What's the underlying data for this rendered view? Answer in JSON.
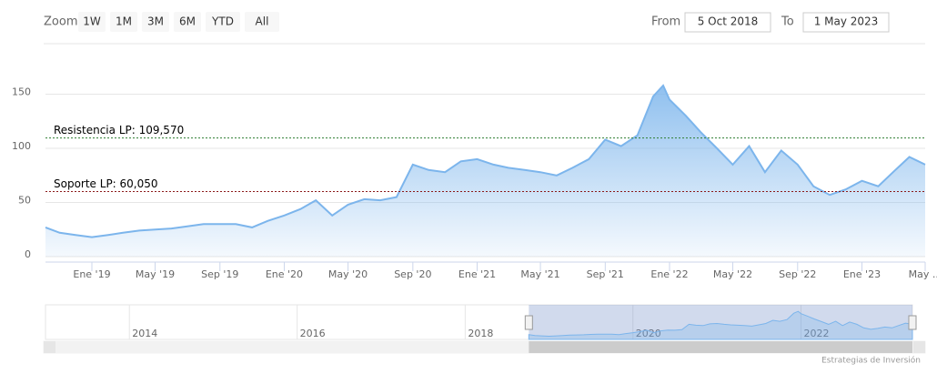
{
  "ui": {
    "zoom_label": "Zoom",
    "zoom_buttons": [
      "1W",
      "1M",
      "3M",
      "6M",
      "YTD",
      "All"
    ],
    "from_label": "From",
    "from_value": "5 Oct 2018",
    "to_label": "To",
    "to_value": "1 May 2023",
    "credits": "Estrategias de Inversión"
  },
  "chart_data": {
    "type": "area",
    "color": "#7cb5ec",
    "x": [
      "2018-10-05",
      "2018-11-01",
      "2018-12-01",
      "2019-01-01",
      "2019-02-01",
      "2019-03-01",
      "2019-04-01",
      "2019-05-01",
      "2019-06-01",
      "2019-07-01",
      "2019-08-01",
      "2019-09-01",
      "2019-10-01",
      "2019-11-01",
      "2019-12-01",
      "2020-01-01",
      "2020-02-01",
      "2020-03-01",
      "2020-04-01",
      "2020-05-01",
      "2020-06-01",
      "2020-07-01",
      "2020-08-01",
      "2020-09-01",
      "2020-10-01",
      "2020-11-01",
      "2020-12-01",
      "2021-01-01",
      "2021-02-01",
      "2021-03-01",
      "2021-04-01",
      "2021-05-01",
      "2021-06-01",
      "2021-07-01",
      "2021-08-01",
      "2021-09-01",
      "2021-10-01",
      "2021-11-01",
      "2021-12-01",
      "2021-12-20",
      "2022-01-01",
      "2022-02-01",
      "2022-03-01",
      "2022-04-01",
      "2022-05-01",
      "2022-06-01",
      "2022-07-01",
      "2022-08-01",
      "2022-09-01",
      "2022-10-01",
      "2022-11-01",
      "2022-12-01",
      "2023-01-01",
      "2023-02-01",
      "2023-03-01",
      "2023-04-01",
      "2023-05-01"
    ],
    "values": [
      27,
      22,
      20,
      18,
      20,
      22,
      24,
      25,
      26,
      28,
      30,
      30,
      30,
      27,
      33,
      38,
      44,
      52,
      38,
      48,
      53,
      52,
      55,
      85,
      80,
      78,
      88,
      90,
      85,
      82,
      80,
      78,
      75,
      82,
      90,
      108,
      102,
      112,
      148,
      158,
      145,
      130,
      115,
      100,
      85,
      102,
      78,
      98,
      85,
      65,
      57,
      62,
      70,
      65,
      78,
      92,
      85
    ],
    "xlim": [
      "2018-10-05",
      "2023-05-01"
    ],
    "xticks": [
      {
        "value": "2019-01-01",
        "label": "Ene '19"
      },
      {
        "value": "2019-05-01",
        "label": "May '19"
      },
      {
        "value": "2019-09-01",
        "label": "Sep '19"
      },
      {
        "value": "2020-01-01",
        "label": "Ene '20"
      },
      {
        "value": "2020-05-01",
        "label": "May '20"
      },
      {
        "value": "2020-09-01",
        "label": "Sep '20"
      },
      {
        "value": "2021-01-01",
        "label": "Ene '21"
      },
      {
        "value": "2021-05-01",
        "label": "May '21"
      },
      {
        "value": "2021-09-01",
        "label": "Sep '21"
      },
      {
        "value": "2022-01-01",
        "label": "Ene '22"
      },
      {
        "value": "2022-05-01",
        "label": "May '22"
      },
      {
        "value": "2022-09-01",
        "label": "Sep '22"
      },
      {
        "value": "2023-01-01",
        "label": "Ene '23"
      },
      {
        "value": "2023-05-01",
        "label": "May ..."
      }
    ],
    "ylim": [
      0,
      195
    ],
    "yticks": [
      0,
      50,
      100,
      150
    ],
    "grid": true,
    "plot_lines": [
      {
        "value": 109.57,
        "label": "Resistencia LP: 109,570",
        "color": "#2e7d32"
      },
      {
        "value": 60.05,
        "label": "Soporte LP: 60,050",
        "color": "#8b1a1a"
      }
    ],
    "navigator": {
      "xlim": [
        "2013-01-01",
        "2023-05-01"
      ],
      "xticks": [
        {
          "value": "2014-01-01",
          "label": "2014"
        },
        {
          "value": "2016-01-01",
          "label": "2016"
        },
        {
          "value": "2018-01-01",
          "label": "2018"
        },
        {
          "value": "2020-01-01",
          "label": "2020"
        },
        {
          "value": "2022-01-01",
          "label": "2022"
        }
      ]
    }
  }
}
